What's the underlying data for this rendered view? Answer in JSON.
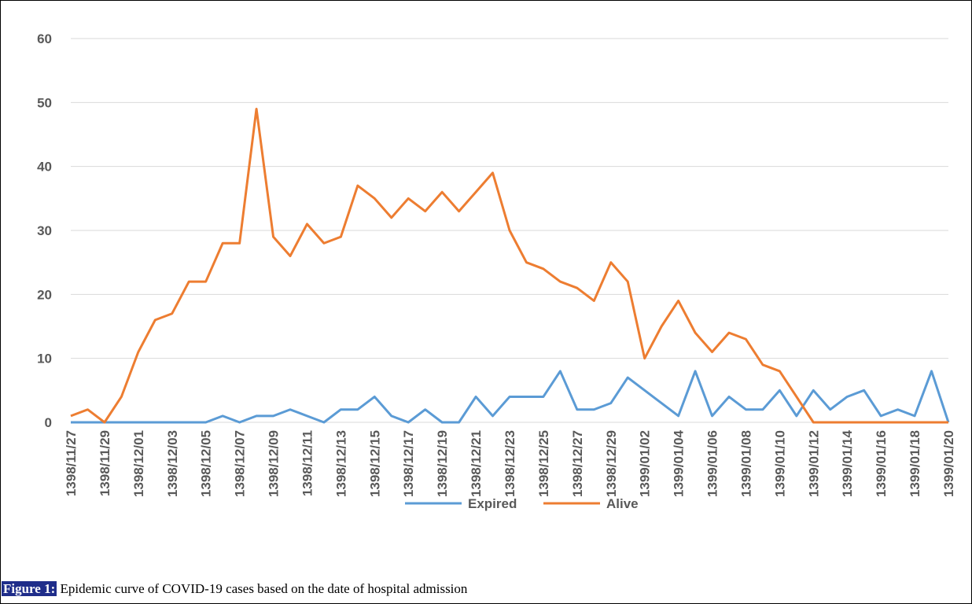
{
  "chart_data": {
    "type": "line",
    "categories": [
      "1398/11/27",
      null,
      "1398/11/29",
      null,
      "1398/12/01",
      null,
      "1398/12/03",
      null,
      "1398/12/05",
      null,
      "1398/12/07",
      null,
      "1398/12/09",
      null,
      "1398/12/11",
      null,
      "1398/12/13",
      null,
      "1398/12/15",
      null,
      "1398/12/17",
      null,
      "1398/12/19",
      null,
      "1398/12/21",
      null,
      "1398/12/23",
      null,
      "1398/12/25",
      null,
      "1398/12/27",
      null,
      "1398/12/29",
      null,
      "1399/01/02",
      null,
      "1399/01/04",
      null,
      "1399/01/06",
      null,
      "1399/01/08",
      null,
      "1399/01/10",
      null,
      "1399/01/12",
      null,
      "1399/01/14",
      null,
      "1399/01/16",
      null,
      "1399/01/18",
      null,
      "1399/01/20"
    ],
    "series": [
      {
        "name": "Expired",
        "color": "#5b9bd5",
        "values": [
          0,
          0,
          0,
          0,
          0,
          0,
          0,
          0,
          0,
          1,
          0,
          1,
          1,
          2,
          1,
          0,
          2,
          2,
          4,
          1,
          0,
          2,
          0,
          0,
          4,
          1,
          4,
          4,
          4,
          8,
          2,
          2,
          3,
          7,
          5,
          3,
          1,
          8,
          1,
          4,
          2,
          2,
          5,
          1,
          5,
          2,
          4,
          5,
          1,
          2,
          1,
          8,
          0
        ]
      },
      {
        "name": "Alive",
        "color": "#ed7d31",
        "values": [
          1,
          2,
          0,
          4,
          11,
          16,
          17,
          22,
          22,
          28,
          28,
          49,
          29,
          26,
          31,
          28,
          29,
          37,
          35,
          32,
          35,
          33,
          36,
          33,
          36,
          39,
          30,
          25,
          24,
          22,
          21,
          19,
          25,
          22,
          10,
          15,
          19,
          14,
          11,
          14,
          13,
          9,
          8,
          4,
          0,
          0,
          0,
          0,
          0,
          0,
          0,
          0,
          0
        ]
      }
    ],
    "ylim": [
      0,
      60
    ],
    "yticks": [
      0,
      10,
      20,
      30,
      40,
      50,
      60
    ],
    "grid": true,
    "legend": "bottom"
  },
  "caption": {
    "label": "Figure 1:",
    "text": "Epidemic curve of COVID-19 cases based on the date of hospital admission"
  }
}
